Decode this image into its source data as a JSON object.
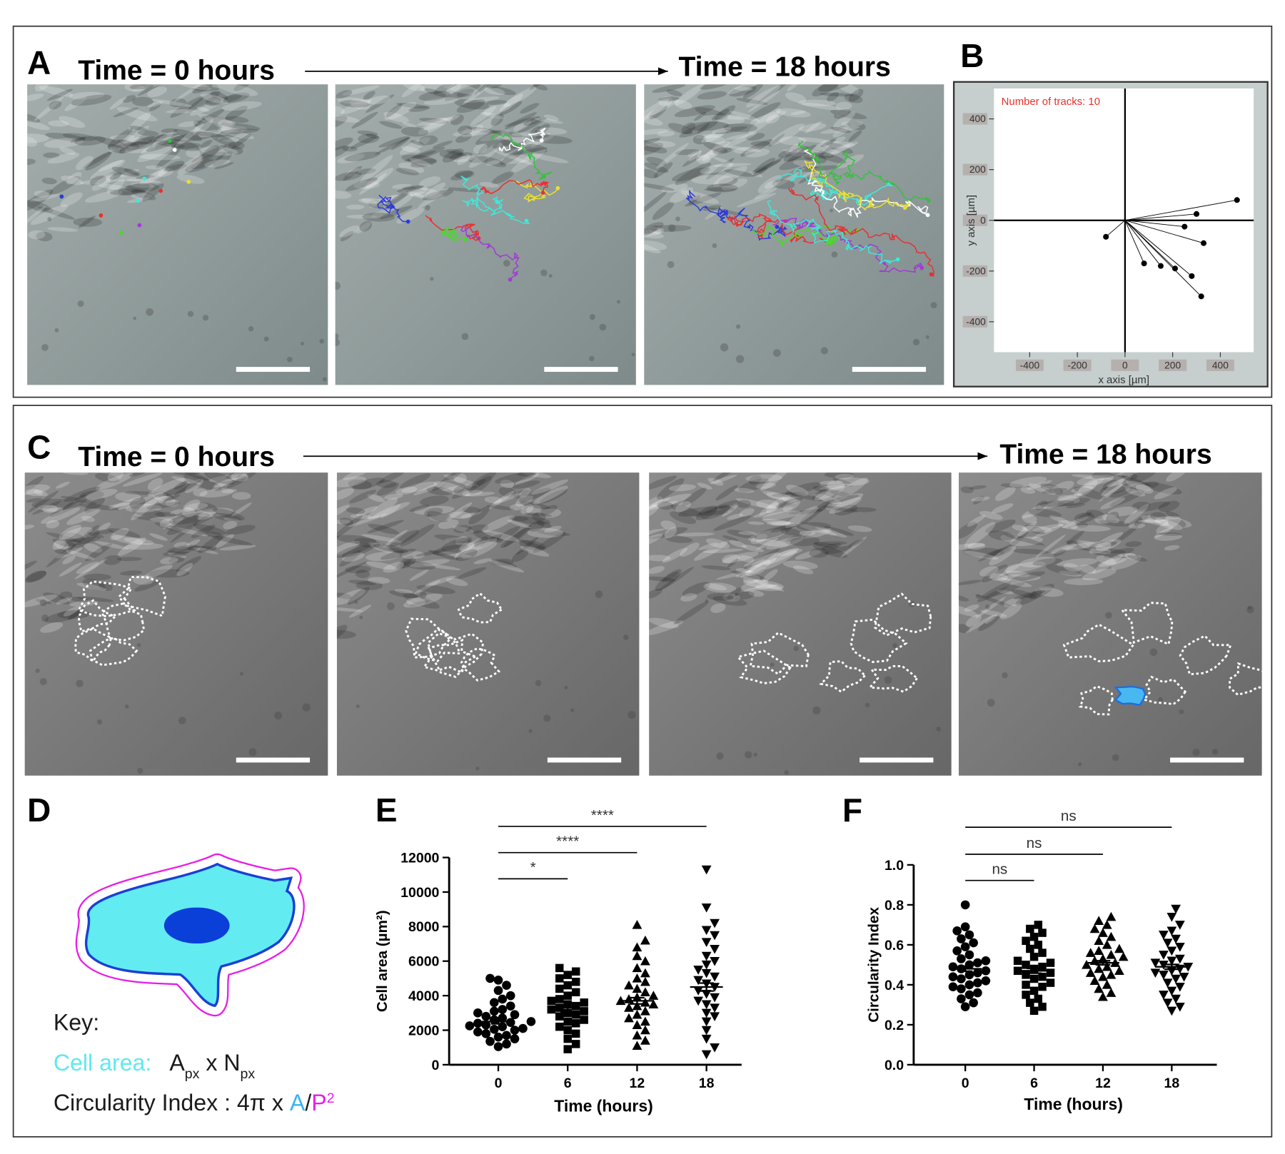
{
  "panel_a": {
    "label": "A",
    "start_label": "Time = 0 hours",
    "end_label": "Time = 18 hours"
  },
  "panel_c": {
    "label": "C",
    "start_label": "Time = 0 hours",
    "end_label": "Time = 18 hours"
  },
  "panel_d": {
    "label": "D",
    "key_lines": [
      [
        {
          "text": "Key:"
        }
      ],
      [
        {
          "text": "Cell area:",
          "color": "#5ee9f0"
        },
        {
          "text": "   A"
        },
        {
          "text": "px",
          "sub": true
        },
        {
          "text": " x N"
        },
        {
          "text": "px",
          "sub": true
        }
      ],
      [
        {
          "text": "Circularity Index : 4π x "
        },
        {
          "text": "A",
          "color": "#3ab4f2"
        },
        {
          "text": "/"
        },
        {
          "text": "P",
          "color": "#e81ce8"
        },
        {
          "text": "2",
          "sup": true,
          "color": "#e81ce8"
        }
      ]
    ]
  },
  "chart_data": [
    {
      "type": "track_plot",
      "panel_label": "B",
      "annotation": "Number of tracks: 10",
      "annotation_color": "#e8302a",
      "xlabel": "x axis [µm]",
      "ylabel": "y axis [µm]",
      "color": "#000000",
      "x": [
        470,
        300,
        250,
        330,
        80,
        150,
        210,
        280,
        320,
        -80
      ],
      "y": [
        80,
        25,
        -25,
        -90,
        -170,
        -180,
        -190,
        -220,
        -300,
        -65
      ],
      "xlim": [
        -550,
        540
      ],
      "ylim": [
        -520,
        520
      ],
      "xticks": [
        -400,
        -200,
        0,
        200,
        400
      ],
      "yticks": [
        -400,
        -200,
        0,
        200,
        400
      ]
    },
    {
      "type": "dot_plot",
      "panel_label": "E",
      "xlabel": "Time (hours)",
      "ylabel": "Cell area (µm²)",
      "color": "#000000",
      "categories": [
        "0",
        "6",
        "12",
        "18"
      ],
      "groups": [
        {
          "marker": "circle",
          "mean": 2500,
          "sem": 130,
          "values": [
            1050,
            1200,
            1350,
            1500,
            1600,
            1700,
            1800,
            1900,
            2000,
            2050,
            2100,
            2200,
            2250,
            2300,
            2400,
            2450,
            2500,
            2600,
            2700,
            2800,
            2900,
            3000,
            3100,
            3200,
            3400,
            3600,
            3800,
            4000,
            4300,
            4600,
            4900,
            5000
          ]
        },
        {
          "marker": "square",
          "mean": 3200,
          "sem": 150,
          "values": [
            900,
            1200,
            1500,
            1800,
            2000,
            2200,
            2400,
            2500,
            2600,
            2800,
            2900,
            3000,
            3100,
            3200,
            3300,
            3400,
            3500,
            3600,
            3700,
            3800,
            4000,
            4200,
            4400,
            4600,
            4800,
            5000,
            5200,
            5400,
            5600
          ]
        },
        {
          "marker": "triangle-up",
          "mean": 3700,
          "sem": 180,
          "values": [
            1100,
            1400,
            1700,
            2000,
            2300,
            2500,
            2700,
            2900,
            3100,
            3300,
            3400,
            3500,
            3600,
            3700,
            3800,
            3900,
            4000,
            4200,
            4400,
            4600,
            4800,
            5000,
            5300,
            5600,
            6000,
            6300,
            6800,
            7200,
            8100
          ]
        },
        {
          "marker": "triangle-down",
          "mean": 4500,
          "sem": 230,
          "values": [
            600,
            1000,
            1500,
            2000,
            2500,
            2800,
            3000,
            3300,
            3500,
            3700,
            3900,
            4100,
            4300,
            4500,
            4700,
            4900,
            5100,
            5300,
            5500,
            5800,
            6000,
            6300,
            6700,
            7100,
            7500,
            7800,
            8200,
            9100,
            11300
          ]
        }
      ],
      "ylim": [
        0,
        12000
      ],
      "yticks": [
        0,
        2000,
        4000,
        6000,
        8000,
        10000,
        12000
      ],
      "significance": [
        {
          "from": "0",
          "to": "6",
          "label": "*"
        },
        {
          "from": "0",
          "to": "12",
          "label": "****"
        },
        {
          "from": "0",
          "to": "18",
          "label": "****"
        }
      ]
    },
    {
      "type": "dot_plot",
      "panel_label": "F",
      "xlabel": "Time (hours)",
      "ylabel": "Circularity Index",
      "color": "#000000",
      "categories": [
        "0",
        "6",
        "12",
        "18"
      ],
      "groups": [
        {
          "marker": "circle",
          "mean": 0.48,
          "sem": 0.012,
          "values": [
            0.29,
            0.31,
            0.33,
            0.35,
            0.36,
            0.38,
            0.39,
            0.4,
            0.41,
            0.42,
            0.43,
            0.44,
            0.45,
            0.46,
            0.47,
            0.48,
            0.49,
            0.5,
            0.51,
            0.52,
            0.53,
            0.55,
            0.57,
            0.59,
            0.61,
            0.63,
            0.65,
            0.67,
            0.69,
            0.8
          ]
        },
        {
          "marker": "square",
          "mean": 0.47,
          "sem": 0.012,
          "values": [
            0.27,
            0.29,
            0.31,
            0.33,
            0.35,
            0.37,
            0.39,
            0.4,
            0.41,
            0.43,
            0.44,
            0.45,
            0.46,
            0.47,
            0.48,
            0.49,
            0.5,
            0.51,
            0.52,
            0.54,
            0.56,
            0.58,
            0.6,
            0.62,
            0.64,
            0.66,
            0.68,
            0.7
          ]
        },
        {
          "marker": "triangle-up",
          "mean": 0.51,
          "sem": 0.01,
          "values": [
            0.34,
            0.36,
            0.38,
            0.4,
            0.42,
            0.44,
            0.45,
            0.46,
            0.47,
            0.48,
            0.49,
            0.5,
            0.51,
            0.52,
            0.53,
            0.54,
            0.55,
            0.56,
            0.57,
            0.58,
            0.6,
            0.62,
            0.64,
            0.66,
            0.68,
            0.7,
            0.72,
            0.74
          ]
        },
        {
          "marker": "triangle-down",
          "mean": 0.49,
          "sem": 0.012,
          "values": [
            0.27,
            0.29,
            0.31,
            0.33,
            0.35,
            0.37,
            0.39,
            0.41,
            0.43,
            0.44,
            0.45,
            0.46,
            0.47,
            0.48,
            0.49,
            0.5,
            0.51,
            0.52,
            0.53,
            0.55,
            0.57,
            0.59,
            0.61,
            0.63,
            0.65,
            0.67,
            0.7,
            0.74,
            0.78
          ]
        }
      ],
      "ylim": [
        0,
        1
      ],
      "yticks": [
        {
          "value": 0,
          "label": "0.0"
        },
        0.2,
        0.4,
        0.6,
        0.8,
        {
          "value": 1,
          "label": "1.0"
        }
      ],
      "significance": [
        {
          "from": "0",
          "to": "6",
          "label": "ns"
        },
        {
          "from": "0",
          "to": "12",
          "label": "ns"
        },
        {
          "from": "0",
          "to": "18",
          "label": "ns"
        }
      ]
    }
  ]
}
